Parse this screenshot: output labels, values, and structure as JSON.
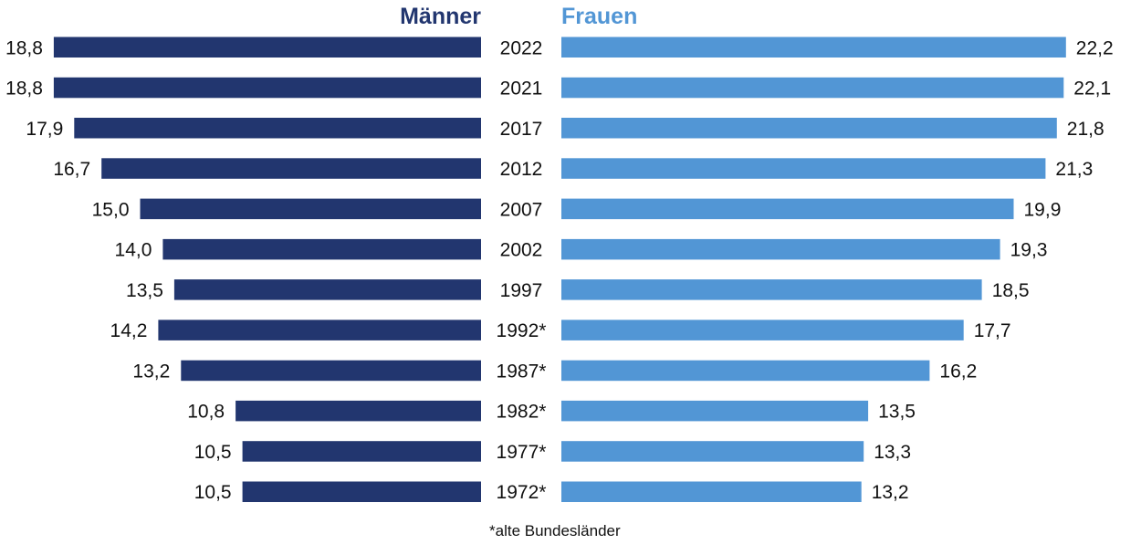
{
  "chart_data": {
    "type": "bar",
    "orientation": "horizontal",
    "layout": "butterfly",
    "categories": [
      "2022",
      "2021",
      "2017",
      "2012",
      "2007",
      "2002",
      "1997",
      "1992*",
      "1987*",
      "1982*",
      "1977*",
      "1972*"
    ],
    "series": [
      {
        "name": "Männer",
        "color": "#22366f",
        "values": [
          18.8,
          18.8,
          17.9,
          16.7,
          15.0,
          14.0,
          13.5,
          14.2,
          13.2,
          10.8,
          10.5,
          10.5
        ]
      },
      {
        "name": "Frauen",
        "color": "#5296d5",
        "values": [
          22.2,
          22.1,
          21.8,
          21.3,
          19.9,
          19.3,
          18.5,
          17.7,
          16.2,
          13.5,
          13.3,
          13.2
        ]
      }
    ],
    "value_labels": {
      "Männer": [
        "18,8",
        "18,8",
        "17,9",
        "16,7",
        "15,0",
        "14,0",
        "13,5",
        "14,2",
        "13,2",
        "10,8",
        "10,5",
        "10,5"
      ],
      "Frauen": [
        "22,2",
        "22,1",
        "21,8",
        "21,3",
        "19,9",
        "19,3",
        "18,5",
        "17,7",
        "16,2",
        "13,5",
        "13,3",
        "13,2"
      ]
    },
    "footnote": "*alte Bundesländer",
    "grid": false
  }
}
